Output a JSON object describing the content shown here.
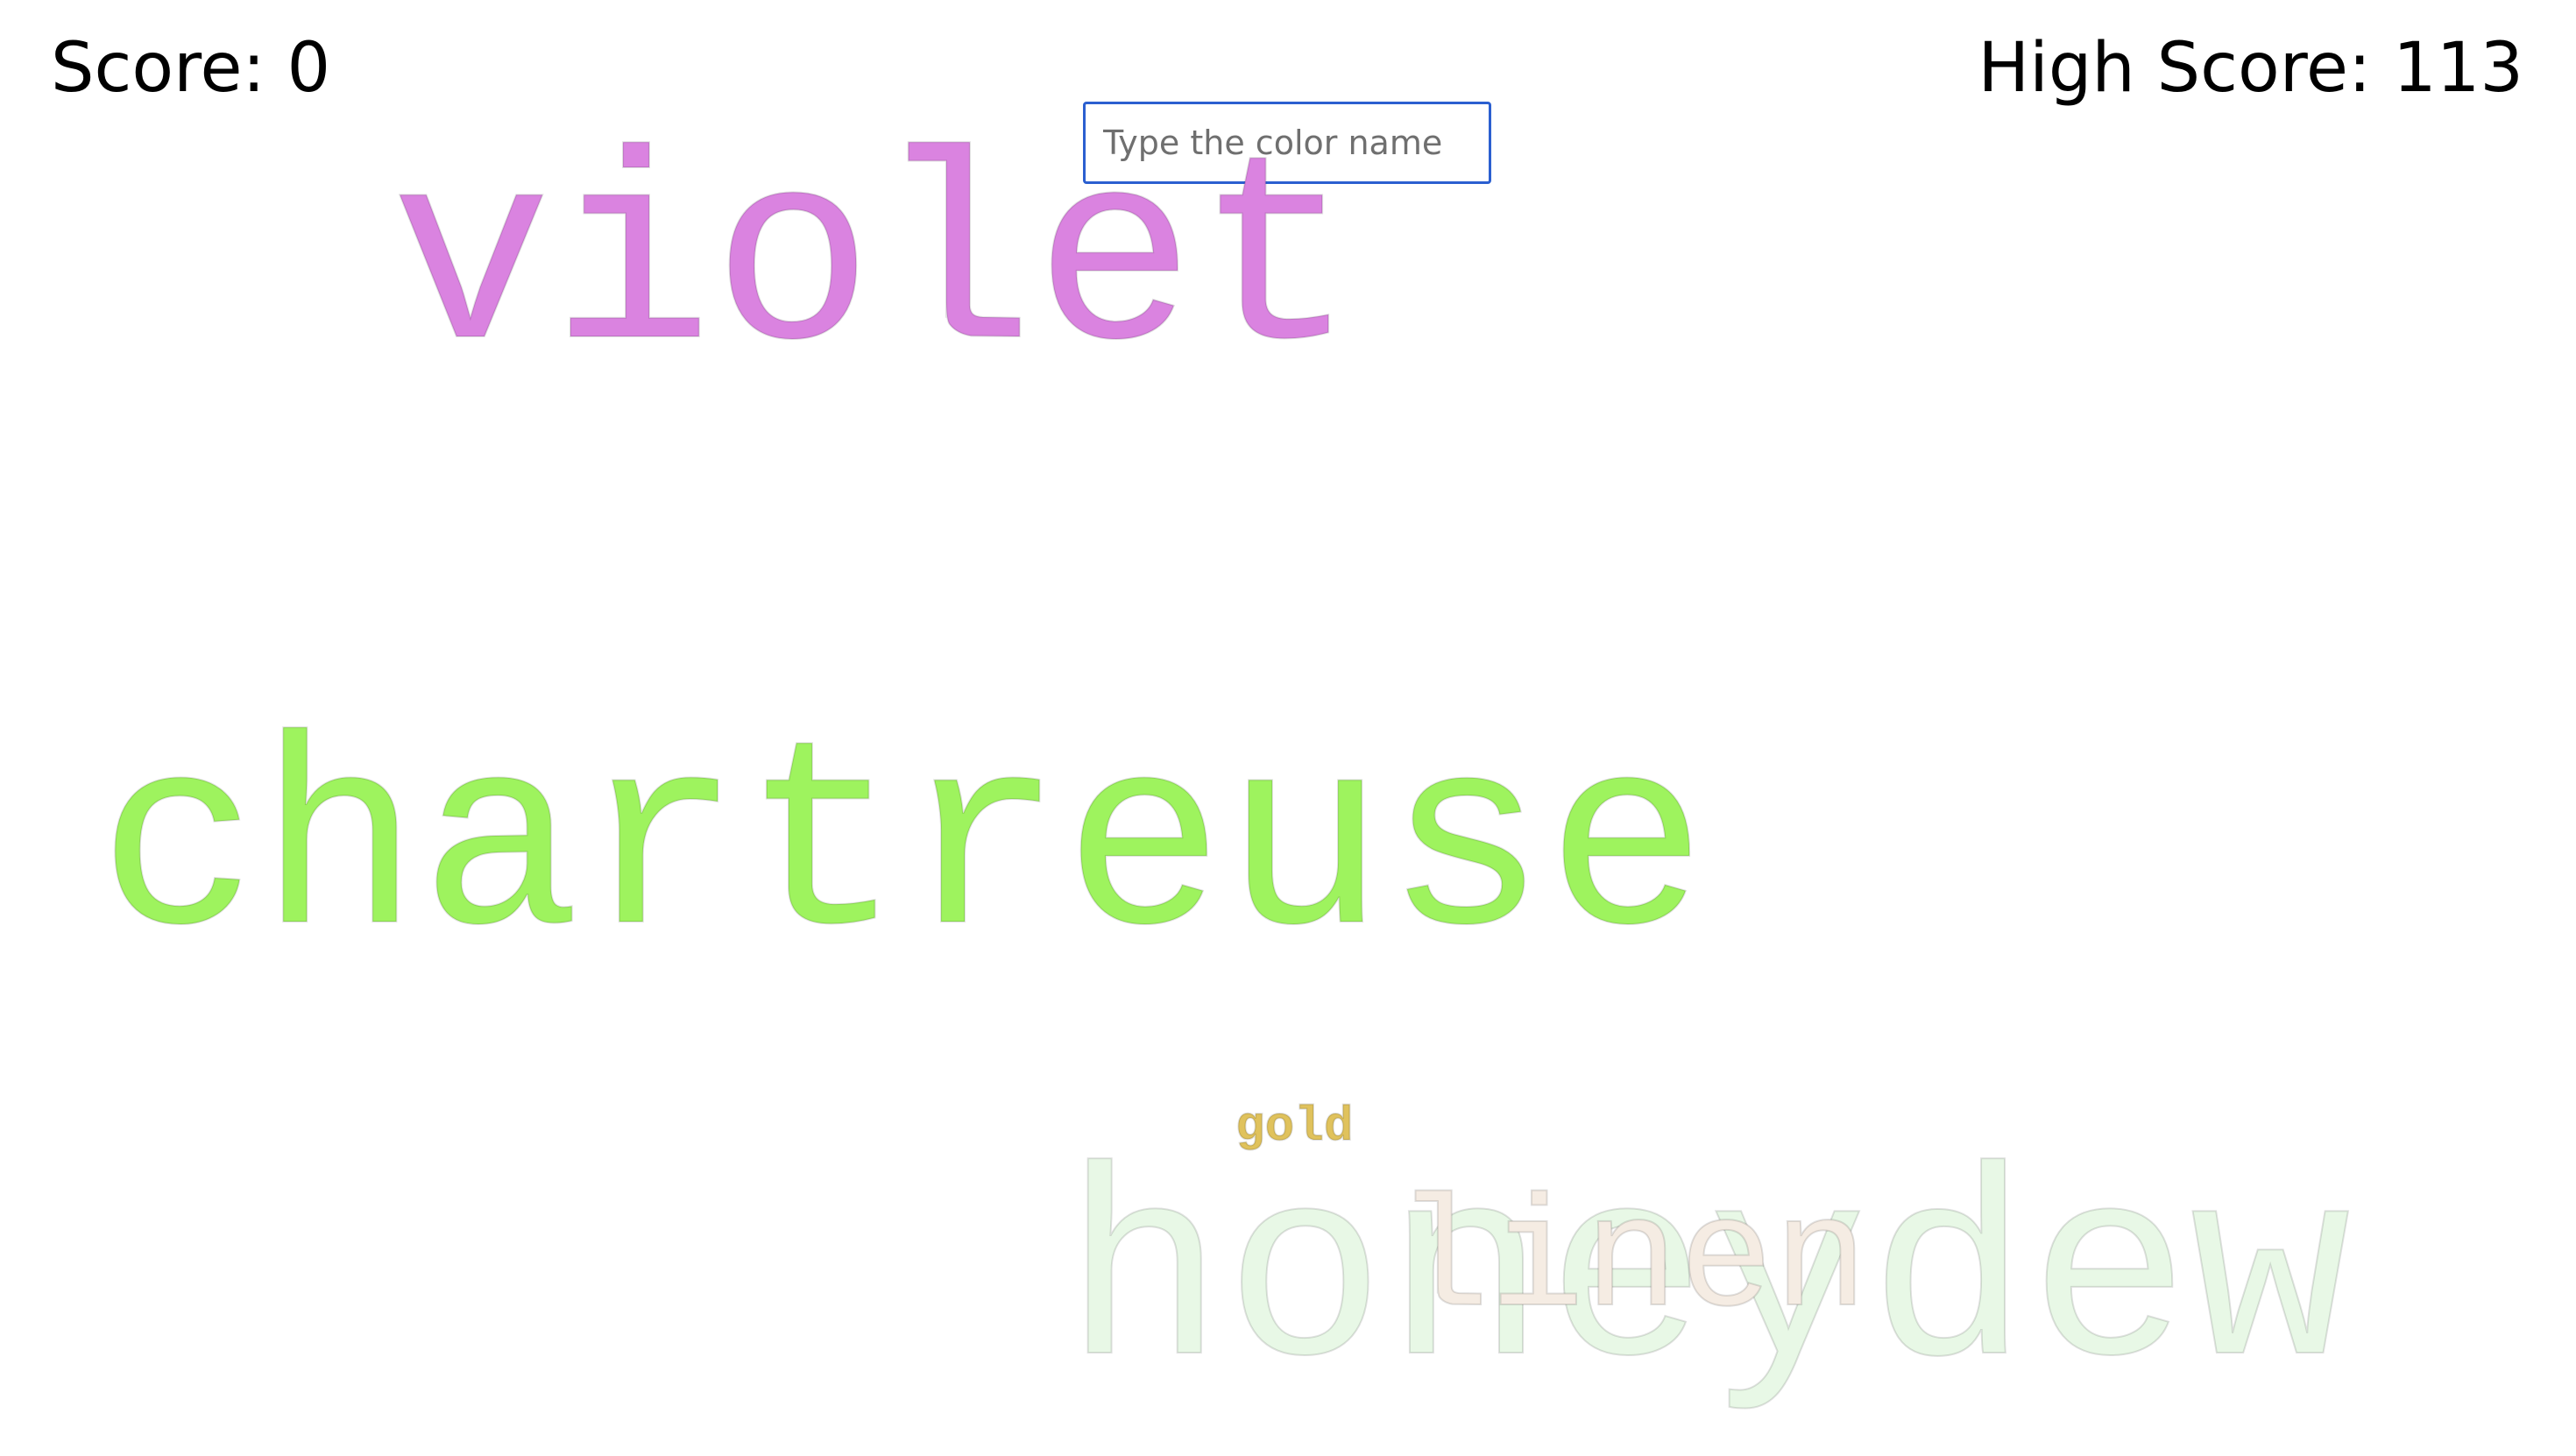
{
  "hud": {
    "score_label": "Score: 0",
    "high_score_label": "High Score: 113"
  },
  "input": {
    "placeholder": "Type the color name",
    "value": ""
  },
  "words": [
    {
      "text": "violet",
      "color": "#da83e0"
    },
    {
      "text": "chartreuse",
      "color": "#9ef35e"
    },
    {
      "text": "gold",
      "color": "#e0c25c"
    },
    {
      "text": "honeydew",
      "color": "#e8f8e6"
    },
    {
      "text": "linen",
      "color": "#f5ece3"
    }
  ]
}
